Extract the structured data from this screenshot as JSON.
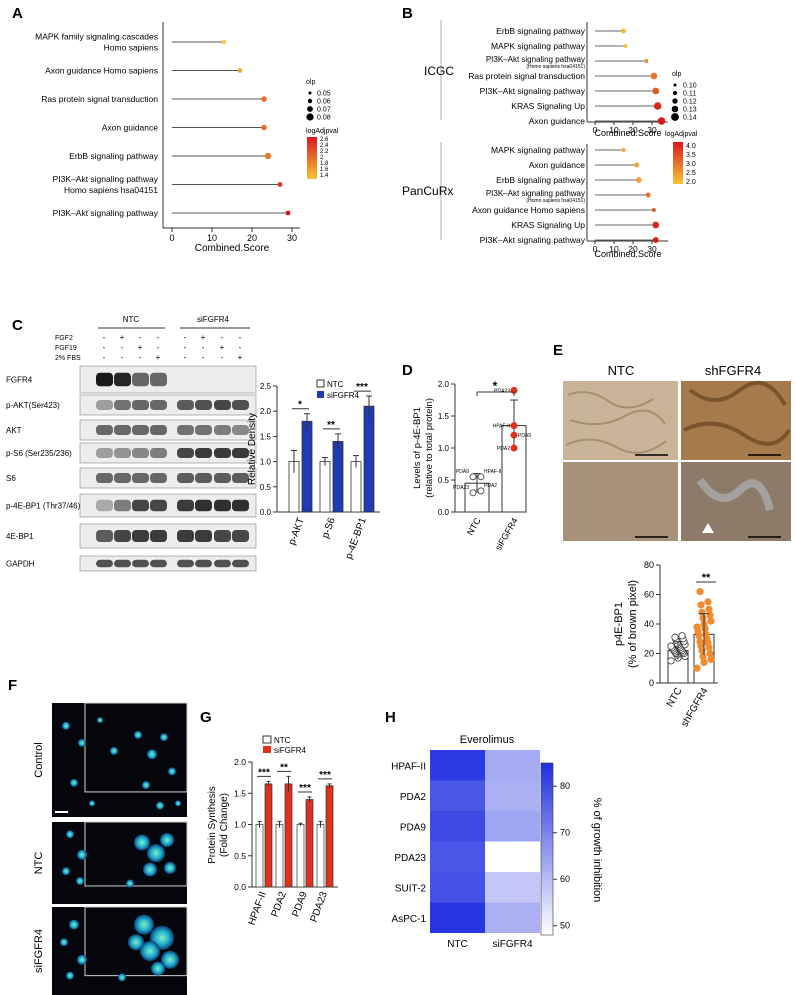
{
  "panels": {
    "A": {
      "letter": "A",
      "chart_data": {
        "type": "scatter",
        "subtype": "lollipop",
        "xlabel": "Combined.Score",
        "xticks": [
          0,
          10,
          20,
          30
        ],
        "xlim": [
          0,
          32
        ],
        "categories": [
          [
            "MAPK family signaling cascades",
            "Homo sapiens"
          ],
          [
            "Axon guidance Homo sapiens"
          ],
          [
            "Ras protein signal transduction"
          ],
          [
            "Axon guidance"
          ],
          [
            "ErbB signaling pathway"
          ],
          [
            "PI3K–Akt signaling pathway",
            "Homo sapiens hsa04151"
          ],
          [
            "PI3K–Akt signaling pathway"
          ]
        ],
        "values": [
          13,
          17,
          23,
          23,
          24,
          27,
          29
        ],
        "olp": [
          0.05,
          0.06,
          0.07,
          0.07,
          0.08,
          0.06,
          0.06
        ],
        "logAdjpval": [
          1.4,
          1.6,
          2.0,
          2.0,
          1.9,
          2.4,
          2.6
        ],
        "legend_size_title": "olp",
        "legend_size_values": [
          "0.05",
          "0.06",
          "0.07",
          "0.08"
        ],
        "legend_color_title": "logAdjpval",
        "legend_color_ticks": [
          "2.6",
          "2.4",
          "2.2",
          "2",
          "1.8",
          "1.6",
          "1.4"
        ]
      }
    },
    "B": {
      "letter": "B",
      "groups": [
        "ICGC",
        "PanCuRx"
      ],
      "chart_data": [
        {
          "type": "scatter",
          "subtype": "lollipop",
          "group": "ICGC",
          "xlabel": "Combined.Score",
          "xticks": [
            0,
            10,
            20,
            30
          ],
          "categories": [
            [
              "ErbB signaling pathway"
            ],
            [
              "MAPK signaling pathway"
            ],
            [
              "PI3K–Akt signaling pathway",
              "(Homo sapiens hsa04151)"
            ],
            [
              "Ras protein signal transduction"
            ],
            [
              "PI3K–Akt signaling pathway"
            ],
            [
              "KRAS Signaling Up"
            ],
            [
              "Axon guidance"
            ]
          ],
          "values": [
            15,
            16,
            27,
            31,
            32,
            33,
            35
          ],
          "olp": [
            0.11,
            0.1,
            0.1,
            0.13,
            0.13,
            0.14,
            0.14
          ],
          "logAdjpval": [
            1.6,
            1.4,
            2.2,
            2.6,
            3.0,
            3.8,
            4.0
          ],
          "legend_size_title": "olp",
          "legend_size_values": [
            "0.10",
            "0.11",
            "0.12",
            "0.13",
            "0.14"
          ],
          "legend_color_title": "logAdjpval",
          "legend_color_ticks": [
            "4.0",
            "3.5",
            "3.0",
            "2.5",
            "2.0"
          ]
        },
        {
          "type": "scatter",
          "subtype": "lollipop",
          "group": "PanCuRx",
          "xlabel": "Combined.Score",
          "xticks": [
            0,
            10,
            20,
            30
          ],
          "categories": [
            [
              "MAPK signaling pathway"
            ],
            [
              "Axon guidance"
            ],
            [
              "ErbB signaling pathway"
            ],
            [
              "PI3K–Akt signaling pathway",
              "(Homo sapiens hsa04151)"
            ],
            [
              "Axon guidance Homo sapiens"
            ],
            [
              "KRAS Signaling Up"
            ],
            [
              "PI3K–Akt signaling pathway"
            ]
          ],
          "values": [
            15,
            22,
            23,
            28,
            31,
            32,
            32
          ],
          "olp": [
            0.1,
            0.11,
            0.12,
            0.11,
            0.1,
            0.13,
            0.12
          ],
          "logAdjpval": [
            1.8,
            1.9,
            2.0,
            2.6,
            3.0,
            3.8,
            4.0
          ]
        }
      ]
    },
    "C": {
      "letter": "C",
      "group_labels": [
        "NTC",
        "siFGFR4"
      ],
      "treatments": [
        {
          "name": "FGF2",
          "signs": [
            "-",
            "+",
            "-",
            "-",
            "-",
            "+",
            "-",
            "-"
          ]
        },
        {
          "name": "FGF19",
          "signs": [
            "-",
            "-",
            "+",
            "-",
            "-",
            "-",
            "+",
            "-"
          ]
        },
        {
          "name": "2% FBS",
          "signs": [
            "-",
            "-",
            "-",
            "+",
            "-",
            "-",
            "-",
            "+"
          ]
        }
      ],
      "blots": [
        {
          "label": "FGFR4",
          "intensity": [
            0.95,
            0.9,
            0.6,
            0.6,
            0,
            0,
            0,
            0
          ]
        },
        {
          "label": "p-AKT(Ser423)",
          "intensity": [
            0.35,
            0.55,
            0.6,
            0.6,
            0.65,
            0.7,
            0.75,
            0.7
          ]
        },
        {
          "label": "AKT",
          "intensity": [
            0.6,
            0.6,
            0.6,
            0.6,
            0.55,
            0.55,
            0.5,
            0.45
          ]
        },
        {
          "label": "p-S6 (Ser235/236)",
          "intensity": [
            0.35,
            0.4,
            0.45,
            0.5,
            0.75,
            0.8,
            0.8,
            0.8
          ]
        },
        {
          "label": "S6",
          "intensity": [
            0.6,
            0.6,
            0.6,
            0.6,
            0.65,
            0.65,
            0.65,
            0.65
          ]
        },
        {
          "label": "p-4E-BP1 (Thr37/46)",
          "intensity": [
            0.3,
            0.5,
            0.75,
            0.75,
            0.8,
            0.85,
            0.85,
            0.85
          ]
        },
        {
          "label": "4E-BP1",
          "intensity": [
            0.65,
            0.75,
            0.8,
            0.8,
            0.8,
            0.8,
            0.75,
            0.75
          ]
        },
        {
          "label": "GAPDH",
          "intensity": [
            0.7,
            0.7,
            0.7,
            0.7,
            0.7,
            0.7,
            0.7,
            0.7
          ]
        }
      ],
      "chart_data": {
        "type": "bar",
        "categories": [
          "p-AKT",
          "p-S6",
          "p-4E-BP1"
        ],
        "series": [
          {
            "name": "NTC",
            "values": [
              1.0,
              1.0,
              1.0
            ],
            "errors": [
              0.22,
              0.08,
              0.12
            ],
            "color": "#ffffff"
          },
          {
            "name": "siFGFR4",
            "values": [
              1.8,
              1.4,
              2.1
            ],
            "errors": [
              0.15,
              0.15,
              0.2
            ],
            "color": "#1f3bb3"
          }
        ],
        "ylabel": "Relative Density",
        "ylim": [
          0,
          2.5
        ],
        "yticks": [
          "0.0",
          "0.5",
          "1.0",
          "1.5",
          "2.0",
          "2.5"
        ],
        "significance": [
          "*",
          "**",
          "***"
        ]
      }
    },
    "D": {
      "letter": "D",
      "chart_data": {
        "type": "bar",
        "categories": [
          "NTC",
          "siFGFR4"
        ],
        "values": [
          0.45,
          1.35
        ],
        "errors": [
          0.15,
          0.4
        ],
        "ylabel": "Levels of p-4E-BP1\n(relative to total protein)",
        "ylim": [
          0,
          2.0
        ],
        "yticks": [
          "0.0",
          "0.5",
          "1.0",
          "1.5",
          "2.0"
        ],
        "significance": "*",
        "points": {
          "NTC": [
            {
              "label": "PDA9",
              "value": 0.55
            },
            {
              "label": "HPAF-II",
              "value": 0.55
            },
            {
              "label": "PDA23",
              "value": 0.3
            },
            {
              "label": "PDA2",
              "value": 0.33
            }
          ],
          "siFGFR4": [
            {
              "label": "PDA23",
              "value": 1.9
            },
            {
              "label": "HPAF-II",
              "value": 1.35
            },
            {
              "label": "PDA9",
              "value": 1.2
            },
            {
              "label": "PDA2",
              "value": 1.0
            }
          ]
        }
      }
    },
    "E": {
      "letter": "E",
      "columns": [
        "NTC",
        "shFGFR4"
      ],
      "chart_data": {
        "type": "bar",
        "categories": [
          "NTC",
          "shFGFR4"
        ],
        "values": [
          22,
          33
        ],
        "errors": [
          6,
          14
        ],
        "ylabel": "p4E-BP1\n(% of brown pixel)",
        "ylim": [
          0,
          80
        ],
        "yticks": [
          "0",
          "20",
          "40",
          "60",
          "80"
        ],
        "significance": "**",
        "points": {
          "NTC": [
            15,
            17,
            18,
            19,
            20,
            20,
            21,
            21,
            22,
            22,
            23,
            23,
            24,
            24,
            25,
            25,
            26,
            26,
            27,
            28,
            29,
            30,
            31,
            32
          ],
          "shFGFR4": [
            10,
            14,
            16,
            18,
            20,
            22,
            24,
            25,
            27,
            28,
            30,
            32,
            33,
            35,
            37,
            38,
            40,
            42,
            44,
            46,
            48,
            50,
            53,
            55,
            62
          ]
        }
      }
    },
    "F": {
      "letter": "F",
      "rows": [
        "Control",
        "NTC",
        "siFGFR4"
      ]
    },
    "G": {
      "letter": "G",
      "chart_data": {
        "type": "bar",
        "categories": [
          "HPAF-II",
          "PDA2",
          "PDA9",
          "PDA23"
        ],
        "series": [
          {
            "name": "NTC",
            "values": [
              1.0,
              1.0,
              1.0,
              1.0
            ],
            "errors": [
              0.05,
              0.05,
              0.02,
              0.05
            ],
            "color": "#ffffff"
          },
          {
            "name": "siFGFR4",
            "values": [
              1.65,
              1.65,
              1.4,
              1.62
            ],
            "errors": [
              0.04,
              0.12,
              0.04,
              0.03
            ],
            "color": "#e0301e"
          }
        ],
        "ylabel": "Protein Synthesis\n(Fold Change)",
        "ylim": [
          0,
          2.0
        ],
        "yticks": [
          "0.0",
          "0.5",
          "1.0",
          "1.5",
          "2.0"
        ],
        "significance": [
          "***",
          "**",
          "***",
          "***"
        ]
      }
    },
    "H": {
      "letter": "H",
      "chart_data": {
        "type": "heatmap",
        "title": "Everolimus",
        "rows": [
          "HPAF-II",
          "PDA2",
          "PDA9",
          "PDA23",
          "SUIT-2",
          "AsPC-1"
        ],
        "columns": [
          "NTC",
          "siFGFR4"
        ],
        "values": [
          [
            83,
            63
          ],
          [
            78,
            62
          ],
          [
            80,
            64
          ],
          [
            78,
            48
          ],
          [
            79,
            58
          ],
          [
            84,
            62
          ]
        ],
        "colorbar_label": "% of growth inhibition",
        "colorbar_ticks": [
          "50",
          "60",
          "70",
          "80"
        ],
        "vmin": 48,
        "vmax": 85
      }
    }
  },
  "colors": {
    "blue": "#1f3bb3",
    "red": "#e0301e",
    "orange": "#f28a2e",
    "lollipop_low": "#f7c437",
    "lollipop_high": "#d7191c"
  }
}
